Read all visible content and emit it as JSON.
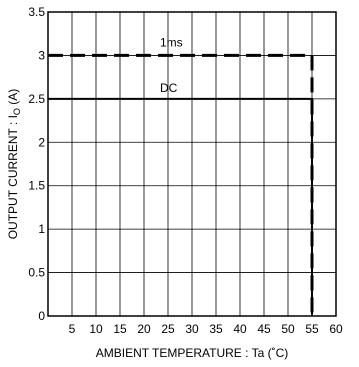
{
  "chart_data": {
    "type": "line",
    "xlabel": "AMBIENT TEMPERATURE : Ta (˚C)",
    "ylabel_prefix": "OUTPUT CURRENT : I",
    "ylabel_sub": "O",
    "ylabel_suffix": " (A)",
    "xlim": [
      0,
      60
    ],
    "ylim": [
      0,
      3.5
    ],
    "grid": true,
    "x_ticks": [
      5,
      10,
      15,
      20,
      25,
      30,
      35,
      40,
      45,
      50,
      55,
      60
    ],
    "x_tick_labels": [
      "5",
      "10",
      "15",
      "20",
      "25",
      "30",
      "35",
      "40",
      "45",
      "50",
      "55",
      "60"
    ],
    "y_ticks": [
      0,
      0.5,
      1,
      1.5,
      2,
      2.5,
      3,
      3.5
    ],
    "y_tick_labels": [
      "0",
      "0.5",
      "1",
      "1.5",
      "2",
      "2.5",
      "3",
      "3.5"
    ],
    "series": [
      {
        "name": "1ms",
        "style": "dashed",
        "points": [
          [
            0,
            3
          ],
          [
            55,
            3
          ],
          [
            55,
            0
          ]
        ]
      },
      {
        "name": "DC",
        "style": "solid",
        "points": [
          [
            0,
            2.5
          ],
          [
            55,
            2.5
          ],
          [
            55,
            0
          ]
        ]
      }
    ]
  }
}
